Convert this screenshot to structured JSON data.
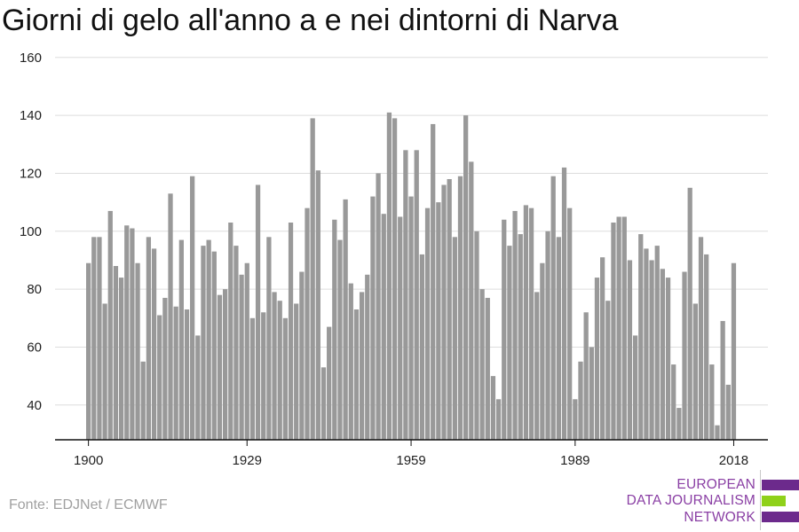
{
  "title": "Giorni di gelo all'anno a e nei dintorni di Narva",
  "source": "Fonte: EDJNet / ECMWF",
  "logo": {
    "line1": "EUROPEAN",
    "line2": "DATA JOURNALISM",
    "line3": "NETWORK",
    "purple": "#6c2a8c",
    "green": "#8fd11a",
    "text_color": "#8a3fa4"
  },
  "chart_data": {
    "type": "bar",
    "title": "Giorni di gelo all'anno a e nei dintorni di Narva",
    "xlabel": "",
    "ylabel": "",
    "bar_color": "#999999",
    "grid": true,
    "ylim": [
      28,
      163
    ],
    "yticks": [
      40,
      60,
      80,
      100,
      120,
      140,
      160
    ],
    "xticks": [
      1900,
      1929,
      1959,
      1989,
      2018
    ],
    "x": [
      1900,
      1901,
      1902,
      1903,
      1904,
      1905,
      1906,
      1907,
      1908,
      1909,
      1910,
      1911,
      1912,
      1913,
      1914,
      1915,
      1916,
      1917,
      1918,
      1919,
      1920,
      1921,
      1922,
      1923,
      1924,
      1925,
      1926,
      1927,
      1928,
      1929,
      1930,
      1931,
      1932,
      1933,
      1934,
      1935,
      1936,
      1937,
      1938,
      1939,
      1940,
      1941,
      1942,
      1943,
      1944,
      1945,
      1946,
      1947,
      1948,
      1949,
      1950,
      1951,
      1952,
      1953,
      1954,
      1955,
      1956,
      1957,
      1958,
      1959,
      1960,
      1961,
      1962,
      1963,
      1964,
      1965,
      1966,
      1967,
      1968,
      1969,
      1970,
      1971,
      1972,
      1973,
      1974,
      1975,
      1976,
      1977,
      1978,
      1979,
      1980,
      1981,
      1982,
      1983,
      1984,
      1985,
      1986,
      1987,
      1988,
      1989,
      1990,
      1991,
      1992,
      1993,
      1994,
      1995,
      1996,
      1997,
      1998,
      1999,
      2000,
      2001,
      2002,
      2003,
      2004,
      2005,
      2006,
      2007,
      2008,
      2009,
      2010,
      2011,
      2012,
      2013,
      2014,
      2015,
      2016,
      2017,
      2018
    ],
    "values": [
      89,
      98,
      98,
      75,
      107,
      88,
      84,
      102,
      101,
      89,
      55,
      98,
      94,
      71,
      77,
      113,
      74,
      97,
      73,
      119,
      64,
      95,
      97,
      93,
      78,
      80,
      103,
      95,
      85,
      89,
      70,
      116,
      72,
      98,
      79,
      76,
      70,
      103,
      75,
      86,
      108,
      139,
      121,
      53,
      67,
      104,
      97,
      111,
      82,
      73,
      79,
      85,
      112,
      120,
      106,
      141,
      139,
      105,
      128,
      112,
      128,
      92,
      108,
      137,
      110,
      116,
      118,
      98,
      119,
      140,
      124,
      100,
      80,
      77,
      50,
      42,
      104,
      95,
      107,
      99,
      109,
      108,
      79,
      89,
      100,
      119,
      98,
      122,
      108,
      42,
      55,
      72,
      60,
      84,
      91,
      76,
      103,
      105,
      105,
      90,
      64,
      99,
      94,
      90,
      95,
      87,
      84,
      54,
      39,
      86,
      115,
      75,
      98,
      92,
      54,
      33,
      69,
      47,
      89
    ]
  }
}
